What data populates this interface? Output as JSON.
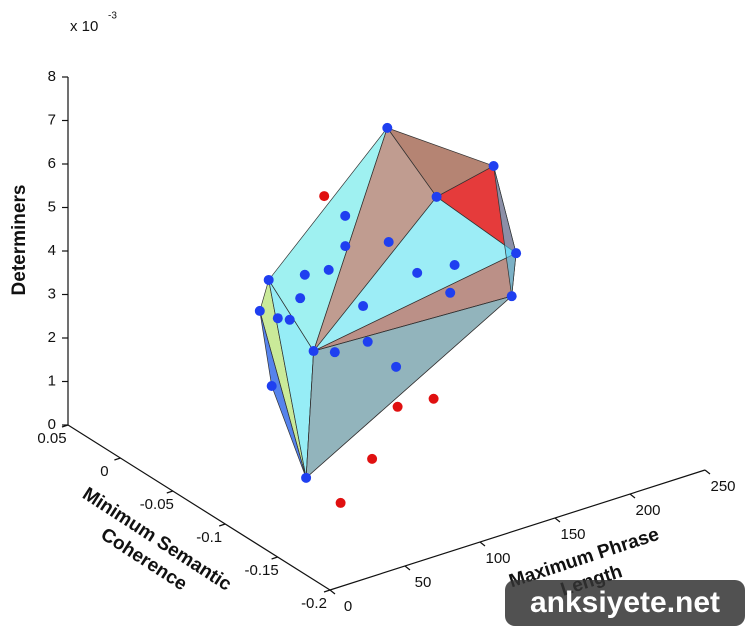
{
  "chart_data": {
    "type": "scatter3d",
    "xlabel": [
      "Maximum Phrase",
      "Length"
    ],
    "ylabel": [
      "Minimum Semantic",
      "Coherence"
    ],
    "zlabel": "Determiners",
    "z_exponent": {
      "base": "x 10",
      "power": "-3"
    },
    "xlim": [
      0,
      250
    ],
    "xticks": [
      0,
      50,
      100,
      150,
      200,
      250
    ],
    "ylim": [
      -0.2,
      0.05
    ],
    "yticks": [
      0.05,
      0,
      -0.05,
      -0.1,
      -0.15,
      -0.2
    ],
    "zlim": [
      0,
      8
    ],
    "zticks": [
      0,
      1,
      2,
      3,
      4,
      5,
      6,
      7,
      8
    ],
    "series": [
      {
        "color": "#1f3ff0",
        "x": [
          143,
          144,
          159,
          191,
          19,
          29,
          58,
          31,
          24,
          106,
          109,
          115,
          69,
          88,
          50,
          70,
          43,
          57,
          95,
          128,
          118,
          150,
          79,
          80,
          108
        ],
        "y": [
          -0.05,
          -0.15,
          -0.15,
          -0.1,
          -0.15,
          -0.1,
          -0.05,
          -0.1,
          -0.15,
          -0.15,
          -0.1,
          -0.05,
          -0.1,
          -0.05,
          -0.1,
          -0.05,
          -0.1,
          -0.15,
          -0.1,
          -0.1,
          -0.15,
          -0.1,
          -0.15,
          -0.1,
          -0.05
        ],
        "z": [
          6.77,
          7.4,
          5.23,
          3.13,
          1.61,
          5.29,
          3.5,
          2.83,
          4.47,
          7.11,
          5.28,
          4.36,
          5.08,
          4.0,
          4.64,
          3.2,
          4.22,
          5.14,
          3.14,
          4.36,
          5.41,
          3.66,
          3.5,
          6.2,
          2.0
        ]
      },
      {
        "color": "#e01010",
        "x": [
          66,
          80,
          104,
          63,
          42
        ],
        "y": [
          -0.1,
          -0.15,
          -0.15,
          -0.15,
          -0.15
        ],
        "z": [
          6.81,
          2.57,
          2.49,
          1.56,
          0.78
        ]
      }
    ],
    "watermark": "anksiyete.net"
  }
}
